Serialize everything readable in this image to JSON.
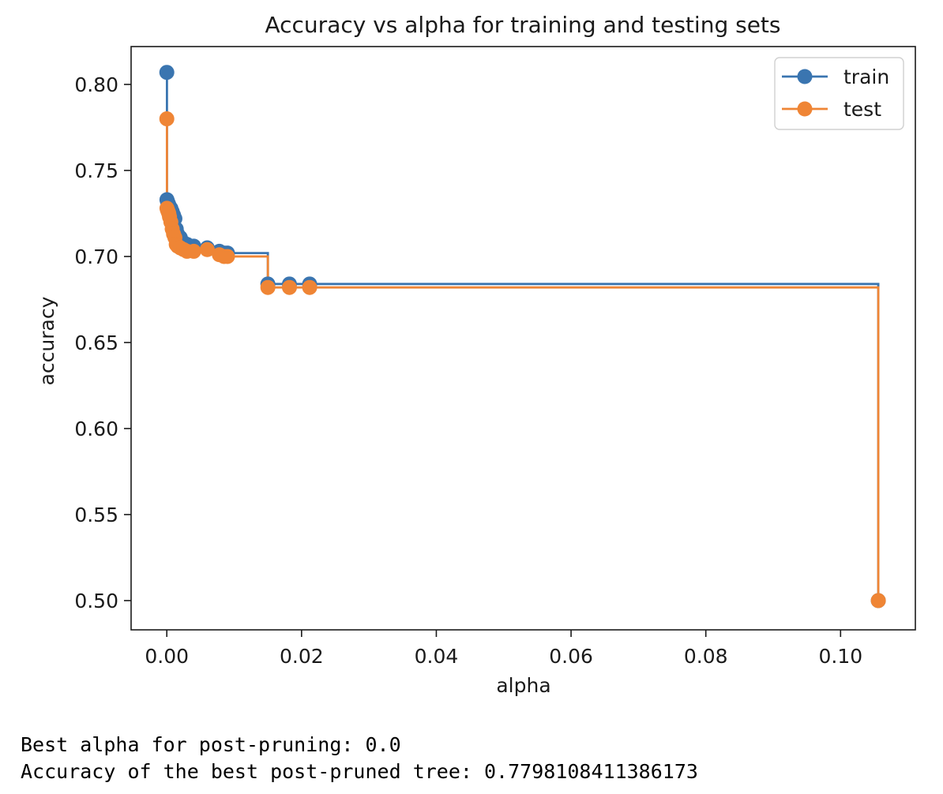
{
  "chart_data": {
    "type": "line",
    "drawstyle": "steps-post",
    "title": "Accuracy vs alpha for training and testing sets",
    "xlabel": "alpha",
    "ylabel": "accuracy",
    "xlim": [
      -0.0053,
      0.1111
    ],
    "ylim": [
      0.483,
      0.822
    ],
    "xticks": [
      0.0,
      0.02,
      0.04,
      0.06,
      0.08,
      0.1
    ],
    "xtick_labels": [
      "0.00",
      "0.02",
      "0.04",
      "0.06",
      "0.08",
      "0.10"
    ],
    "yticks": [
      0.5,
      0.55,
      0.6,
      0.65,
      0.7,
      0.75,
      0.8
    ],
    "ytick_labels": [
      "0.50",
      "0.55",
      "0.60",
      "0.65",
      "0.70",
      "0.75",
      "0.80"
    ],
    "legend_position": "top-right",
    "grid": false,
    "series": [
      {
        "name": "train",
        "color": "#3a75b0",
        "x": [
          0.0,
          2e-05,
          0.0001,
          0.0002,
          0.0003,
          0.0004,
          0.0006,
          0.0008,
          0.001,
          0.0012,
          0.0014,
          0.0016,
          0.002,
          0.0025,
          0.003,
          0.004,
          0.006,
          0.0078,
          0.0085,
          0.009,
          0.015,
          0.0182,
          0.0212,
          0.1056
        ],
        "y": [
          0.807,
          0.733,
          0.732,
          0.731,
          0.73,
          0.729,
          0.728,
          0.726,
          0.724,
          0.722,
          0.716,
          0.713,
          0.711,
          0.708,
          0.707,
          0.706,
          0.705,
          0.703,
          0.702,
          0.702,
          0.684,
          0.684,
          0.684,
          0.5
        ]
      },
      {
        "name": "test",
        "color": "#ef8535",
        "x": [
          0.0,
          2e-05,
          0.0001,
          0.0002,
          0.0003,
          0.0004,
          0.0006,
          0.0008,
          0.001,
          0.0012,
          0.0014,
          0.0016,
          0.002,
          0.0025,
          0.003,
          0.004,
          0.006,
          0.0078,
          0.0085,
          0.009,
          0.015,
          0.0182,
          0.0212,
          0.1056
        ],
        "y": [
          0.78,
          0.728,
          0.727,
          0.726,
          0.725,
          0.723,
          0.72,
          0.716,
          0.713,
          0.711,
          0.707,
          0.706,
          0.705,
          0.704,
          0.703,
          0.703,
          0.704,
          0.701,
          0.7,
          0.7,
          0.682,
          0.682,
          0.682,
          0.5
        ]
      }
    ]
  },
  "output": {
    "line1": "Best alpha for post-pruning: 0.0",
    "line2": "Accuracy of the best post-pruned tree: 0.7798108411386173"
  }
}
